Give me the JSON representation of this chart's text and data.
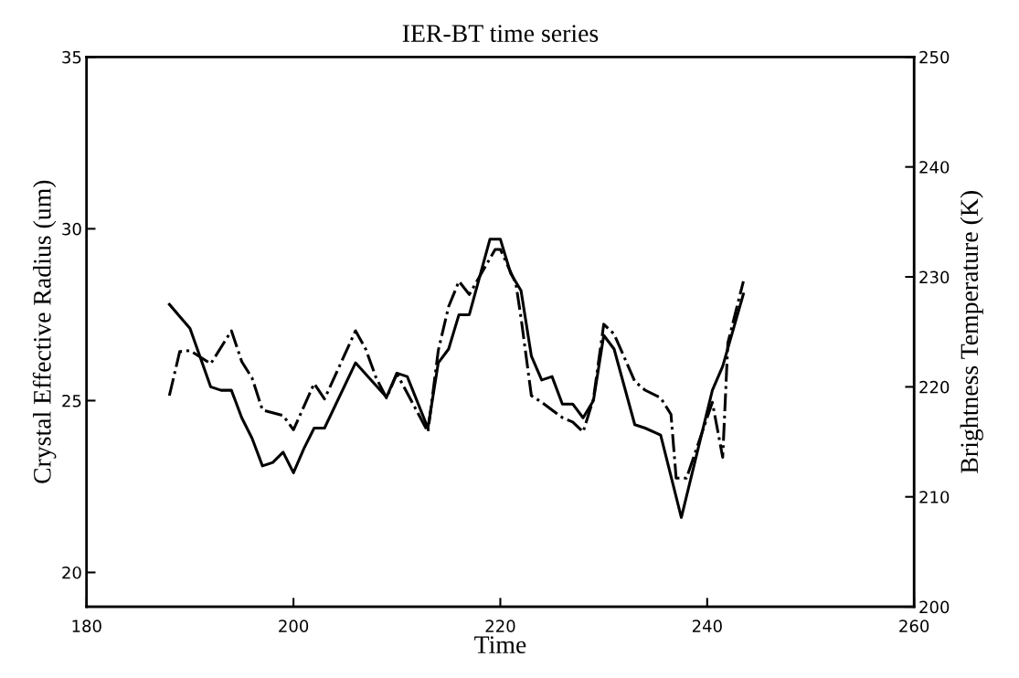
{
  "chart_data": {
    "type": "line",
    "title": "IER-BT time series",
    "xlabel": "Time",
    "ylabel": "Crystal Effective Radius (um)",
    "y2label": "Brightness Temperature (K)",
    "xlim": [
      180,
      260
    ],
    "xticks": [
      180,
      200,
      220,
      240,
      260
    ],
    "ylim": [
      19,
      35
    ],
    "yticks": [
      20,
      25,
      30,
      35
    ],
    "y2lim": [
      200,
      250
    ],
    "y2ticks": [
      200,
      210,
      220,
      230,
      240,
      250
    ],
    "grid": false,
    "legend": false,
    "marker": "none",
    "series": [
      {
        "color": "#000000",
        "line_style": "solid",
        "x": [
          188,
          190,
          192,
          193,
          194,
          195,
          196,
          197,
          198,
          199,
          200,
          201,
          202,
          203,
          206,
          209,
          210,
          211,
          213,
          214,
          215,
          216,
          217,
          219,
          220,
          221,
          222,
          223,
          224,
          225,
          226,
          227,
          228,
          229,
          230,
          231,
          233,
          234,
          235.5,
          237.5,
          240.5,
          241.5,
          243.5
        ],
        "values": [
          27.8,
          27.1,
          25.4,
          25.3,
          25.3,
          24.5,
          23.9,
          23.1,
          23.2,
          23.5,
          22.9,
          23.6,
          24.2,
          24.2,
          26.1,
          25.1,
          25.8,
          25.7,
          24.2,
          26.1,
          26.5,
          27.5,
          27.5,
          29.7,
          29.7,
          28.7,
          28.2,
          26.3,
          25.6,
          25.7,
          24.9,
          24.9,
          24.5,
          25.0,
          26.9,
          26.5,
          24.3,
          24.2,
          24.0,
          21.6,
          25.3,
          26.0,
          28.1
        ]
      },
      {
        "color": "#000000",
        "line_style": "dashdot",
        "axis": "y2",
        "x": [
          188,
          189,
          190,
          192,
          194,
          195,
          196,
          197,
          199,
          200,
          202,
          203,
          206,
          207,
          208,
          209,
          210,
          213,
          214,
          215,
          216,
          217,
          219.5,
          220,
          221.5,
          222,
          223,
          224,
          226,
          227,
          228,
          229,
          230,
          231,
          233,
          234,
          235.5,
          236.5,
          237,
          238,
          240.5,
          241.5,
          242,
          243.5
        ],
        "values": [
          219.2,
          223.2,
          223.3,
          222.1,
          225.1,
          222.3,
          220.8,
          217.9,
          217.4,
          216.1,
          220.3,
          218.9,
          225.1,
          223.4,
          220.8,
          219.0,
          221.2,
          215.9,
          223.3,
          227.3,
          229.6,
          228.4,
          232.5,
          232.5,
          229.4,
          226.3,
          219.2,
          218.6,
          217.2,
          216.8,
          215.9,
          218.9,
          225.7,
          224.8,
          220.5,
          219.7,
          219.0,
          217.5,
          211.7,
          211.7,
          218.6,
          213.6,
          224.0,
          229.6
        ]
      }
    ]
  }
}
